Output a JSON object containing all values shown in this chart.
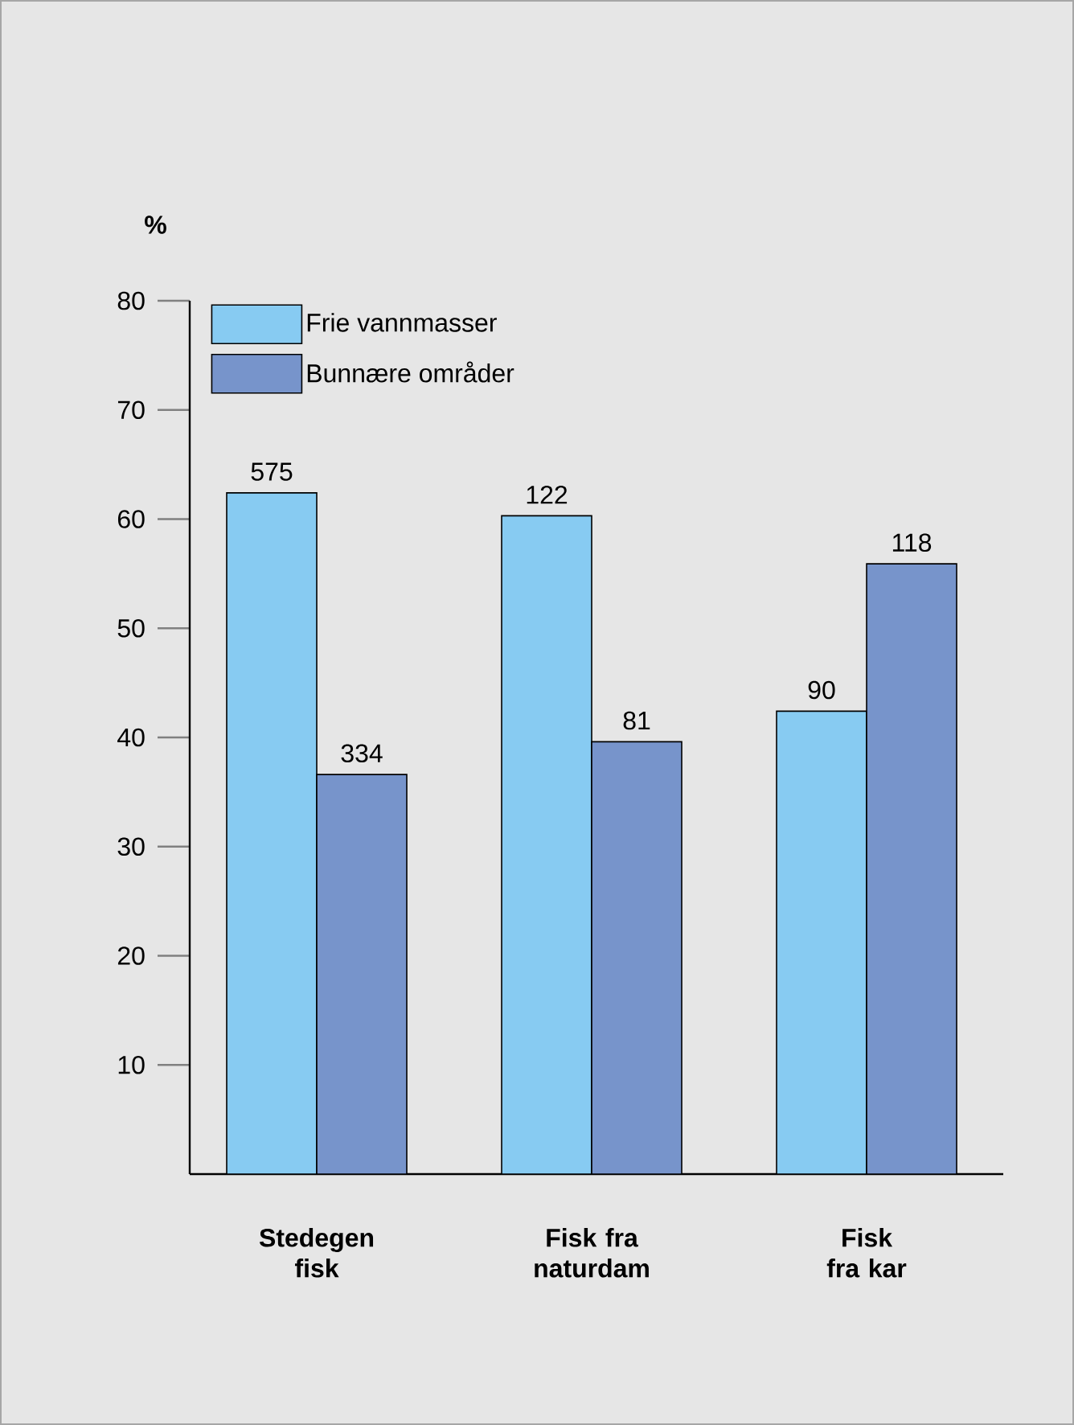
{
  "chart_data": {
    "type": "bar",
    "ylabel": "%",
    "categories": [
      "Stedegen fisk",
      "Fisk fra naturdam",
      "Fisk fra kar"
    ],
    "series": [
      {
        "name": "Frie vannmasser",
        "color": "#87cbf2",
        "values": [
          62.4,
          60.3,
          42.4
        ]
      },
      {
        "name": "Bunnære områder",
        "color": "#7794cb",
        "values": [
          36.6,
          39.6,
          55.9
        ]
      }
    ],
    "annotations": [
      {
        "text": "575",
        "x": "Stedegen fisk",
        "y": 62.4
      },
      {
        "text": "334",
        "x": "Stedegen fisk",
        "y": 36.6
      },
      {
        "text": "122",
        "x": "Fisk fra naturdam",
        "y": 60.3
      },
      {
        "text": "81",
        "x": "Fisk fra naturdam",
        "y": 39.6
      },
      {
        "text": "90",
        "x": "Fisk fra kar",
        "y": 42.4
      },
      {
        "text": "118",
        "x": "Fisk fra kar",
        "y": 55.9
      }
    ],
    "ylim": [
      0,
      80
    ],
    "yticks": [
      10,
      20,
      30,
      40,
      50,
      60,
      70,
      80
    ],
    "legend": "top left",
    "grid": false
  }
}
